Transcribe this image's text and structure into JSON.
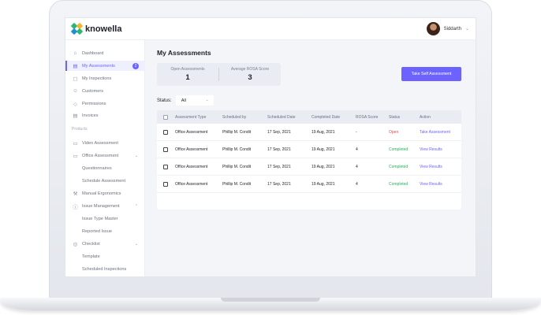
{
  "brand": {
    "name": "knowella"
  },
  "user": {
    "name": "Siddarth"
  },
  "sidebar": {
    "items": [
      {
        "label": "Dashboard",
        "icon": "dashboard-icon",
        "glyph": "⌂"
      },
      {
        "label": "My Assessments",
        "icon": "document-icon",
        "glyph": "▤",
        "badge": "2",
        "active": true
      },
      {
        "label": "My Inspections",
        "icon": "clipboard-icon",
        "glyph": "▢"
      },
      {
        "label": "Customers",
        "icon": "users-icon",
        "glyph": "☺"
      },
      {
        "label": "Permissions",
        "icon": "shield-icon",
        "glyph": "◇"
      },
      {
        "label": "Invoices",
        "icon": "invoice-icon",
        "glyph": "▤"
      }
    ],
    "section_label": "Products",
    "products": [
      {
        "label": "Video Assessment",
        "icon": "video-icon",
        "glyph": "▭"
      },
      {
        "label": "Office Assessment",
        "icon": "office-icon",
        "glyph": "▭",
        "expandable": true
      },
      {
        "label": "Questionnaires",
        "sub": true
      },
      {
        "label": "Schedule Assessment",
        "sub": true
      },
      {
        "label": "Manual Ergonomics",
        "icon": "wrench-icon",
        "glyph": "⚒"
      },
      {
        "label": "Issue Management",
        "icon": "alert-icon",
        "glyph": "ⓘ",
        "expandable": true,
        "expanded": true
      },
      {
        "label": "Issue Type Master",
        "sub": true
      },
      {
        "label": "Reported Issue",
        "sub": true
      },
      {
        "label": "Checklist",
        "icon": "checklist-icon",
        "glyph": "◎",
        "expandable": true
      },
      {
        "label": "Template",
        "sub": true
      },
      {
        "label": "Scheduled Inspections",
        "sub": true
      }
    ]
  },
  "main": {
    "title": "My Assessments",
    "stats": {
      "open_label": "Open Assessments",
      "open_value": "1",
      "avg_label": "Average ROSA Score",
      "avg_value": "3"
    },
    "take_button": "Take Self Assessment",
    "status_filter": {
      "label": "Status:",
      "value": "All"
    },
    "table": {
      "headers": [
        "Assessment Type",
        "Scheduled by",
        "Scheduled Date",
        "Completed Date",
        "ROSA Score",
        "Status",
        "Action"
      ],
      "rows": [
        {
          "type": "Office Assessment",
          "by": "Phillip M. Condit",
          "scheduled": "17 Sep, 2021",
          "completed": "19 Aug, 2021",
          "score": "-",
          "status": "Open",
          "action": "Take Assessment"
        },
        {
          "type": "Office Assessment",
          "by": "Phillip M. Condit",
          "scheduled": "17 Sep, 2021",
          "completed": "19 Aug, 2021",
          "score": "4",
          "status": "Completed",
          "action": "View Results"
        },
        {
          "type": "Office Assessment",
          "by": "Phillip M. Condit",
          "scheduled": "17 Sep, 2021",
          "completed": "19 Aug, 2021",
          "score": "4",
          "status": "Completed",
          "action": "View Results"
        },
        {
          "type": "Office Assessment",
          "by": "Phillip M. Condit",
          "scheduled": "17 Sep, 2021",
          "completed": "19 Aug, 2021",
          "score": "4",
          "status": "Completed",
          "action": "View Results"
        }
      ]
    }
  },
  "colors": {
    "accent": "#6c63ff",
    "open": "#e5484d",
    "completed": "#27ae60"
  }
}
